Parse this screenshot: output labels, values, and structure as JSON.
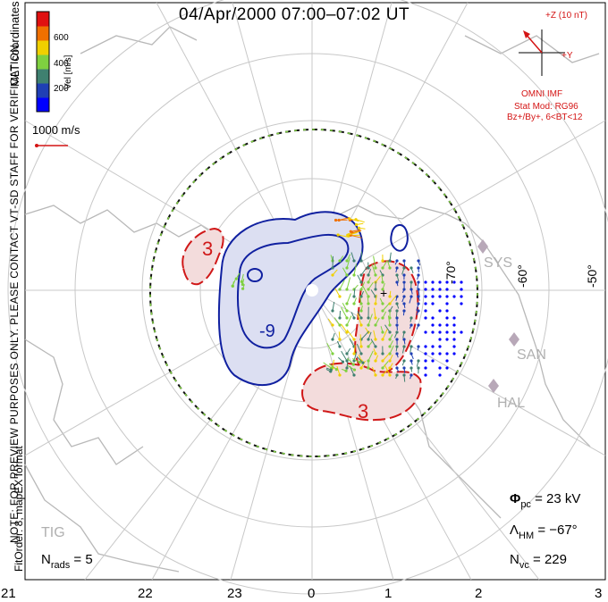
{
  "title": "04/Apr/2000 07:00–07:02 UT",
  "coordinates_label": "MLT coordinates",
  "notice": "NOTE: FOR PREVIEW PURPOSES ONLY. PLEASE CONTACT VT-SD STAFF FOR VERIFICATION.",
  "fit_order": "FitOrder: 8, mapEX format",
  "velocity_scale": {
    "axis_label": "Vel [m/s]",
    "ticks": [
      "600",
      "400",
      "200"
    ],
    "colors": [
      "#0000ff",
      "#1f3fb4",
      "#3f8070",
      "#7fd040",
      "#f0d000",
      "#f07000",
      "#e01010"
    ]
  },
  "vector_reference": {
    "label": "1000 m/s"
  },
  "imf": {
    "z_label": "+Z (10 nT)",
    "y_label": "+Y",
    "source": "OMNI IMF",
    "model": "Stat Mod: RG96",
    "condition": "Bz+/By+, 6<BT<12"
  },
  "latitude_labels": [
    "-70°",
    "-60°",
    "-50°"
  ],
  "mlt_labels": [
    "21",
    "22",
    "23",
    "0",
    "1",
    "2",
    "3"
  ],
  "stations": [
    "SYS",
    "SAN",
    "HAL",
    "TIG"
  ],
  "contours": {
    "negative": "-9",
    "positive_top": "3",
    "positive_bottom": "3"
  },
  "stats": {
    "phi_symbol": "Φ",
    "phi_sub": "pc",
    "phi_value": "= 23 kV",
    "lambda_symbol": "Λ",
    "lambda_sub": "HM",
    "lambda_value": "= −67°",
    "nvc_symbol": "N",
    "nvc_sub": "vc",
    "nvc_value": "= 229",
    "nrads_symbol": "N",
    "nrads_sub": "rads",
    "nrads_value": "= 5"
  },
  "colors": {
    "negative_contour": "#1020a0",
    "positive_contour": "#d01818",
    "annotation": "#d41414",
    "grid": "#c8c8c8"
  }
}
